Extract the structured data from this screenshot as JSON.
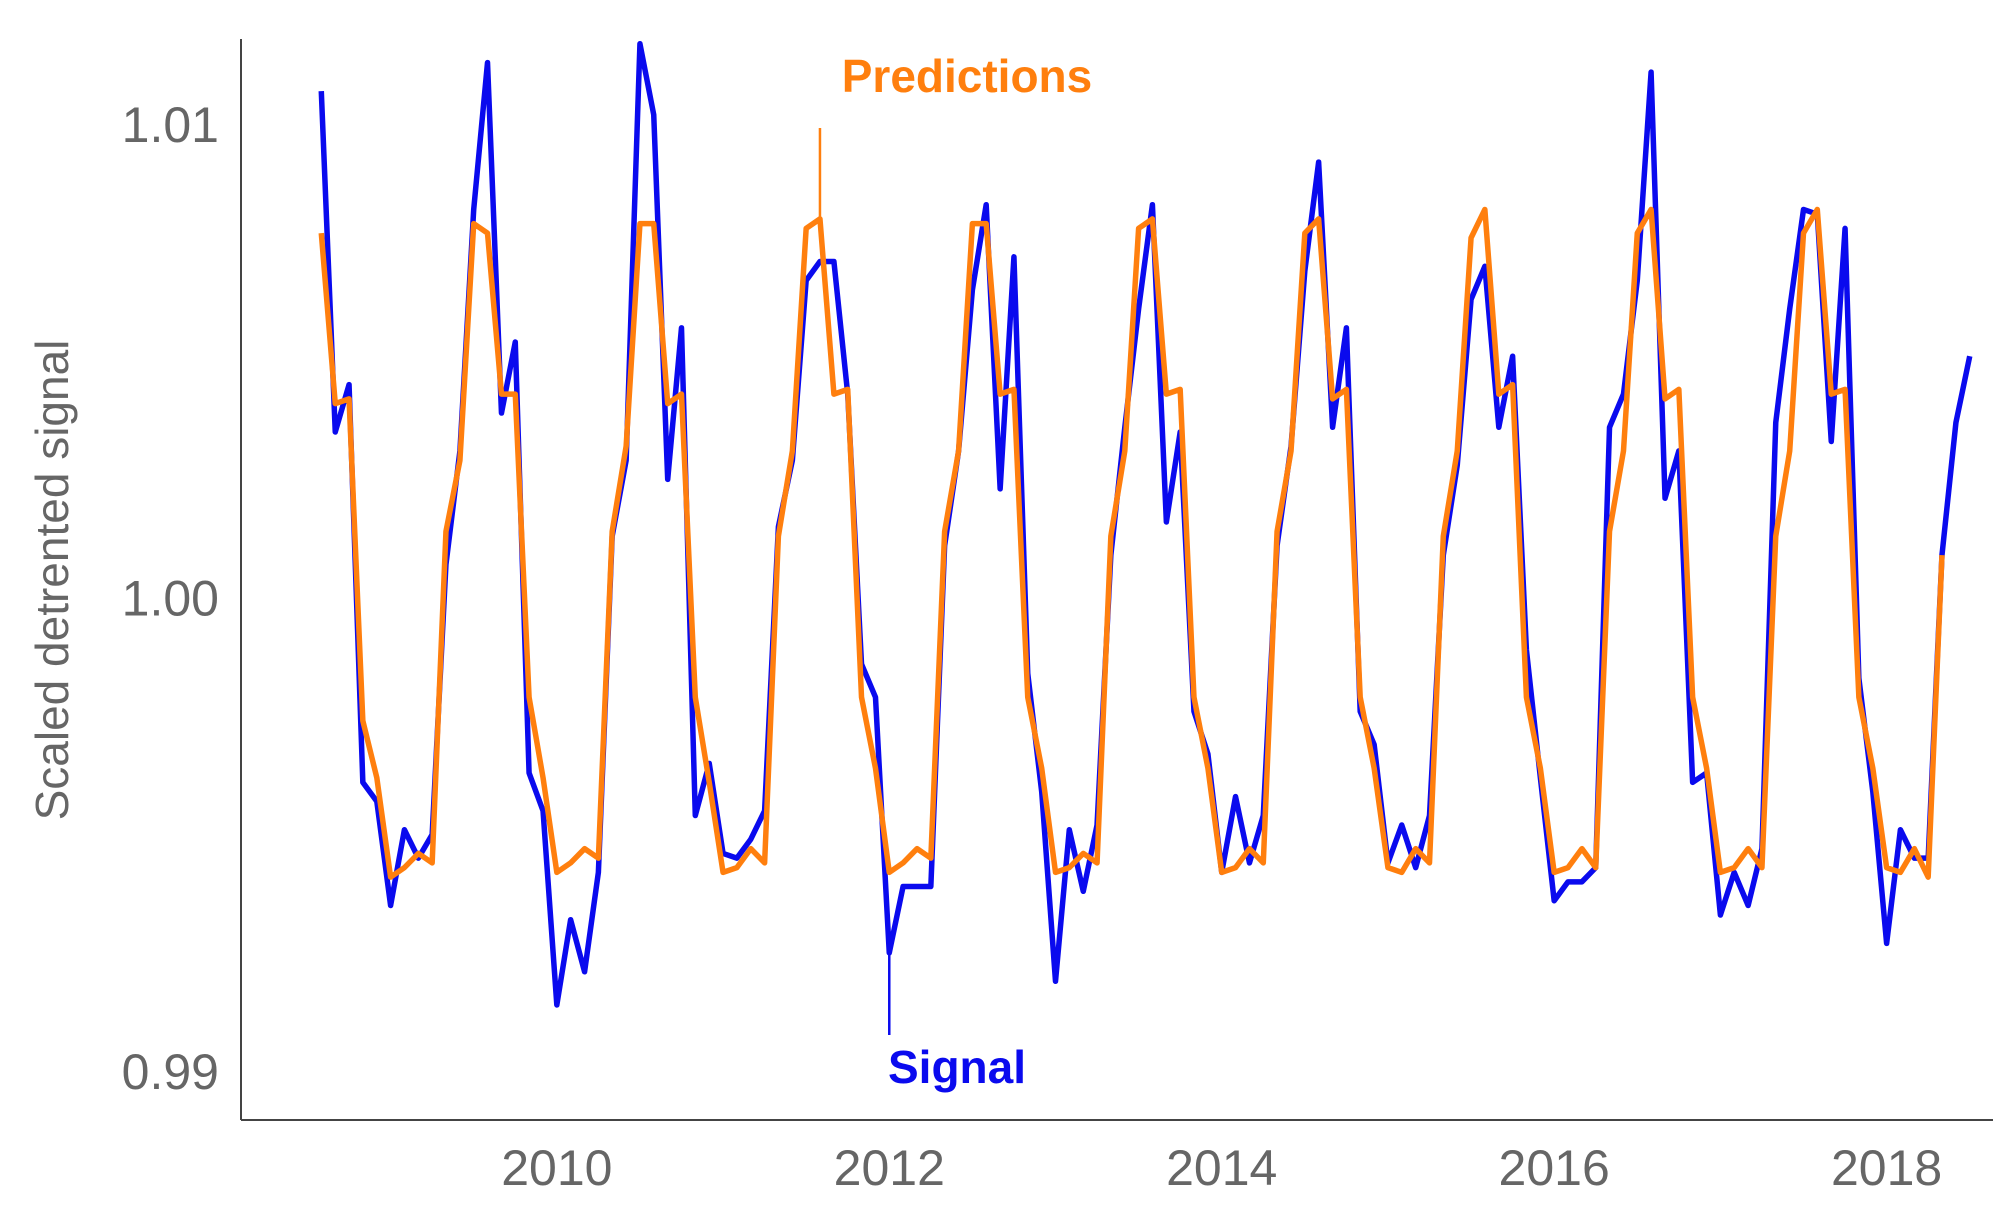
{
  "chart_data": {
    "type": "line",
    "y_label": "Scaled detrented signal",
    "grid": false,
    "xlim": [
      2008.1,
      2018.64
    ],
    "ylim": [
      0.98907,
      1.0119
    ],
    "xticks": [
      2010,
      2012,
      2014,
      2016,
      2018
    ],
    "yticks": [
      0.99,
      {
        "value": 1,
        "label": "1.00"
      },
      1.01
    ],
    "x": [
      2008.583,
      2008.667,
      2008.75,
      2008.833,
      2008.917,
      2009,
      2009.083,
      2009.167,
      2009.25,
      2009.333,
      2009.417,
      2009.5,
      2009.583,
      2009.667,
      2009.75,
      2009.833,
      2009.917,
      2010,
      2010.083,
      2010.167,
      2010.25,
      2010.333,
      2010.417,
      2010.5,
      2010.583,
      2010.667,
      2010.75,
      2010.833,
      2010.917,
      2011,
      2011.083,
      2011.167,
      2011.25,
      2011.333,
      2011.417,
      2011.5,
      2011.583,
      2011.667,
      2011.75,
      2011.833,
      2011.917,
      2012,
      2012.083,
      2012.167,
      2012.25,
      2012.333,
      2012.417,
      2012.5,
      2012.583,
      2012.667,
      2012.75,
      2012.833,
      2012.917,
      2013,
      2013.083,
      2013.167,
      2013.25,
      2013.333,
      2013.417,
      2013.5,
      2013.583,
      2013.667,
      2013.75,
      2013.833,
      2013.917,
      2014,
      2014.083,
      2014.167,
      2014.25,
      2014.333,
      2014.417,
      2014.5,
      2014.583,
      2014.667,
      2014.75,
      2014.833,
      2014.917,
      2015,
      2015.083,
      2015.167,
      2015.25,
      2015.333,
      2015.417,
      2015.5,
      2015.583,
      2015.667,
      2015.75,
      2015.833,
      2015.917,
      2016,
      2016.083,
      2016.167,
      2016.25,
      2016.333,
      2016.417,
      2016.5,
      2016.583,
      2016.667,
      2016.75,
      2016.833,
      2016.917,
      2017,
      2017.083,
      2017.167,
      2017.25,
      2017.333,
      2017.417,
      2017.5,
      2017.583,
      2017.667,
      2017.75,
      2017.833,
      2017.917,
      2018,
      2018.083,
      2018.167,
      2018.25,
      2018.333,
      2018.417,
      2018.5
    ],
    "series": [
      {
        "name": "Signal",
        "color": "#0a0aee",
        "values": [
          1.0108,
          1.0036,
          1.0046,
          0.9962,
          0.9958,
          0.9936,
          0.9952,
          0.9946,
          0.9951,
          1.0008,
          1.0032,
          1.0083,
          1.0114,
          1.004,
          1.0055,
          0.9964,
          0.9956,
          0.9915,
          0.9933,
          0.9922,
          0.9943,
          1.0014,
          1.003,
          1.0118,
          1.0103,
          1.0026,
          1.0058,
          0.9955,
          0.9966,
          0.9947,
          0.9946,
          0.995,
          0.9956,
          1.0016,
          1.003,
          1.0068,
          1.0072,
          1.0072,
          1.0044,
          0.9987,
          0.998,
          0.9926,
          0.994,
          0.994,
          0.994,
          1.0012,
          1.0032,
          1.0066,
          1.0084,
          1.0024,
          1.0073,
          0.9985,
          0.996,
          0.992,
          0.9952,
          0.9939,
          0.9953,
          1.001,
          1.0037,
          1.0062,
          1.0084,
          1.0017,
          1.0036,
          0.9977,
          0.9968,
          0.9943,
          0.9959,
          0.9945,
          0.9955,
          1.0012,
          1.0033,
          1.007,
          1.0093,
          1.0037,
          1.0058,
          0.9977,
          0.997,
          0.9945,
          0.9953,
          0.9944,
          0.9955,
          1.001,
          1.0029,
          1.0064,
          1.0071,
          1.0037,
          1.0052,
          0.999,
          0.9963,
          0.9937,
          0.9941,
          0.9941,
          0.9944,
          1.0037,
          1.0044,
          1.0068,
          1.0112,
          1.0022,
          1.0032,
          0.9962,
          0.9964,
          0.9934,
          0.9943,
          0.9936,
          0.9948,
          1.0038,
          1.0062,
          1.0083,
          1.0082,
          1.0034,
          1.0079,
          0.9984,
          0.996,
          0.9928,
          0.9952,
          0.9946,
          0.9946,
          1.001,
          1.0038,
          1.0052
        ]
      },
      {
        "name": "Predictions",
        "color": "#ff7f0e",
        "values": [
          1.0078,
          1.0042,
          1.0043,
          0.9975,
          0.9963,
          0.9942,
          0.9944,
          0.9947,
          0.9945,
          1.0015,
          1.003,
          1.008,
          1.0078,
          1.0044,
          1.0044,
          0.998,
          0.9963,
          0.9943,
          0.9945,
          0.9948,
          0.9946,
          1.0015,
          1.0033,
          1.008,
          1.008,
          1.0042,
          1.0044,
          0.998,
          0.9962,
          0.9943,
          0.9944,
          0.9948,
          0.9945,
          1.0014,
          1.0032,
          1.0079,
          1.0081,
          1.0044,
          1.0045,
          0.998,
          0.9965,
          0.9943,
          0.9945,
          0.9948,
          0.9946,
          1.0015,
          1.0032,
          1.008,
          1.008,
          1.0044,
          1.0045,
          0.998,
          0.9965,
          0.9943,
          0.9944,
          0.9947,
          0.9945,
          1.0014,
          1.0032,
          1.0079,
          1.0081,
          1.0044,
          1.0045,
          0.998,
          0.9965,
          0.9943,
          0.9944,
          0.9948,
          0.9945,
          1.0015,
          1.0032,
          1.0078,
          1.0081,
          1.0043,
          1.0045,
          0.998,
          0.9965,
          0.9944,
          0.9943,
          0.9948,
          0.9945,
          1.0014,
          1.0032,
          1.0077,
          1.0083,
          1.0044,
          1.0046,
          0.998,
          0.9965,
          0.9943,
          0.9944,
          0.9948,
          0.9944,
          1.0015,
          1.0032,
          1.0078,
          1.0083,
          1.0043,
          1.0045,
          0.998,
          0.9965,
          0.9943,
          0.9944,
          0.9948,
          0.9944,
          1.0014,
          1.0032,
          1.0078,
          1.0083,
          1.0044,
          1.0045,
          0.998,
          0.9965,
          0.9944,
          0.9943,
          0.9948,
          0.9942,
          1.001,
          null,
          null
        ]
      }
    ],
    "annotations": [
      {
        "text": "Predictions",
        "color": "#ff7f0e"
      },
      {
        "text": "Signal",
        "color": "#0a0aee"
      }
    ]
  }
}
